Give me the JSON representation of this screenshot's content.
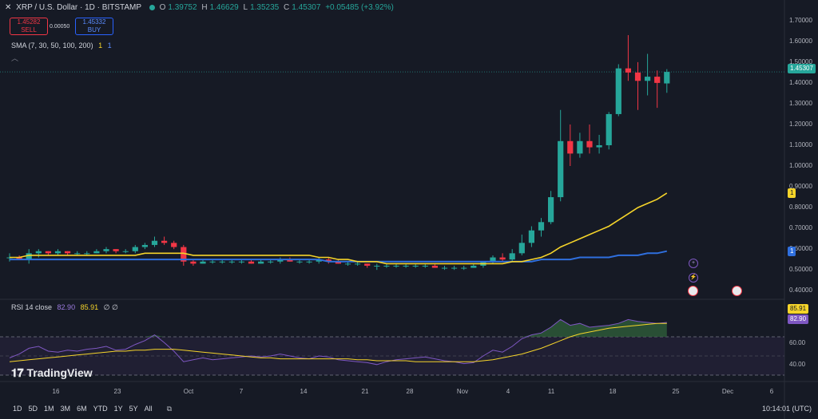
{
  "header": {
    "symbol": "XRP / U.S. Dollar · 1D · BITSTAMP",
    "o_label": "O",
    "o": "1.39752",
    "h_label": "H",
    "h": "1.46629",
    "l_label": "L",
    "l": "1.35235",
    "c_label": "C",
    "c": "1.45307",
    "change": "+0.05485 (+3.92%)"
  },
  "trade": {
    "sell_price": "1.45282",
    "sell_label": "SELL",
    "spread": "0.00050",
    "buy_price": "1.45332",
    "buy_label": "BUY"
  },
  "indicators": {
    "sma": "SMA (7, 30, 50, 100, 200)",
    "sma_v1": "1",
    "sma_v2": "1",
    "rsi": "RSI 14 close",
    "rsi_v1": "82.90",
    "rsi_v2": "85.91",
    "rsi_v3": "∅ ∅"
  },
  "price_tags": {
    "last": "1.45307",
    "sma_yellow": "1",
    "sma_blue": "1",
    "rsi_a": "85.91",
    "rsi_b": "82.90"
  },
  "logo": "TradingView",
  "timeframes": [
    "1D",
    "5D",
    "1M",
    "3M",
    "6M",
    "YTD",
    "1Y",
    "5Y",
    "All"
  ],
  "clock": "10:14:01 (UTC)",
  "colors": {
    "up": "#26a69a",
    "down": "#f23645",
    "sma_yellow": "#f5d42a",
    "sma_blue": "#2f6fde",
    "rsi_line": "#7e57c2"
  },
  "chart_data": {
    "type": "candlestick",
    "y_ticks": [
      "1.70000",
      "1.60000",
      "1.50000",
      "1.40000",
      "1.30000",
      "1.20000",
      "1.10000",
      "1.00000",
      "0.90000",
      "0.80000",
      "0.70000",
      "0.60000",
      "0.50000",
      "0.40000"
    ],
    "ylim": [
      0.37,
      1.73
    ],
    "x_ticks": [
      "16",
      "23",
      "Oct",
      "7",
      "14",
      "21",
      "28",
      "Nov",
      "4",
      "11",
      "18",
      "25",
      "Dec",
      "6"
    ],
    "rsi_ticks": [
      "60.00",
      "40.00"
    ],
    "candles": [
      [
        0.56,
        0.58,
        0.54,
        0.56
      ],
      [
        0.56,
        0.57,
        0.55,
        0.55
      ],
      [
        0.55,
        0.6,
        0.53,
        0.58
      ],
      [
        0.58,
        0.6,
        0.56,
        0.59
      ],
      [
        0.59,
        0.59,
        0.57,
        0.58
      ],
      [
        0.58,
        0.6,
        0.57,
        0.59
      ],
      [
        0.59,
        0.59,
        0.57,
        0.58
      ],
      [
        0.58,
        0.59,
        0.57,
        0.58
      ],
      [
        0.58,
        0.59,
        0.57,
        0.58
      ],
      [
        0.58,
        0.6,
        0.58,
        0.59
      ],
      [
        0.59,
        0.61,
        0.58,
        0.6
      ],
      [
        0.6,
        0.6,
        0.58,
        0.59
      ],
      [
        0.59,
        0.6,
        0.58,
        0.59
      ],
      [
        0.59,
        0.62,
        0.58,
        0.61
      ],
      [
        0.61,
        0.63,
        0.6,
        0.62
      ],
      [
        0.62,
        0.66,
        0.61,
        0.64
      ],
      [
        0.64,
        0.66,
        0.62,
        0.63
      ],
      [
        0.63,
        0.64,
        0.6,
        0.61
      ],
      [
        0.61,
        0.62,
        0.52,
        0.54
      ],
      [
        0.54,
        0.55,
        0.52,
        0.53
      ],
      [
        0.53,
        0.55,
        0.53,
        0.54
      ],
      [
        0.54,
        0.55,
        0.53,
        0.54
      ],
      [
        0.54,
        0.55,
        0.53,
        0.54
      ],
      [
        0.54,
        0.55,
        0.53,
        0.54
      ],
      [
        0.54,
        0.55,
        0.53,
        0.54
      ],
      [
        0.54,
        0.55,
        0.53,
        0.53
      ],
      [
        0.53,
        0.55,
        0.53,
        0.54
      ],
      [
        0.54,
        0.55,
        0.53,
        0.54
      ],
      [
        0.54,
        0.56,
        0.53,
        0.55
      ],
      [
        0.55,
        0.56,
        0.54,
        0.54
      ],
      [
        0.54,
        0.55,
        0.53,
        0.54
      ],
      [
        0.54,
        0.55,
        0.53,
        0.54
      ],
      [
        0.54,
        0.56,
        0.53,
        0.55
      ],
      [
        0.55,
        0.56,
        0.53,
        0.54
      ],
      [
        0.54,
        0.55,
        0.53,
        0.53
      ],
      [
        0.53,
        0.54,
        0.52,
        0.53
      ],
      [
        0.53,
        0.54,
        0.52,
        0.53
      ],
      [
        0.53,
        0.53,
        0.51,
        0.52
      ],
      [
        0.52,
        0.53,
        0.5,
        0.52
      ],
      [
        0.52,
        0.53,
        0.51,
        0.52
      ],
      [
        0.52,
        0.53,
        0.51,
        0.52
      ],
      [
        0.52,
        0.53,
        0.51,
        0.52
      ],
      [
        0.52,
        0.53,
        0.51,
        0.52
      ],
      [
        0.52,
        0.53,
        0.51,
        0.52
      ],
      [
        0.52,
        0.53,
        0.51,
        0.51
      ],
      [
        0.51,
        0.52,
        0.5,
        0.51
      ],
      [
        0.51,
        0.52,
        0.5,
        0.51
      ],
      [
        0.51,
        0.52,
        0.5,
        0.51
      ],
      [
        0.51,
        0.53,
        0.51,
        0.52
      ],
      [
        0.52,
        0.54,
        0.51,
        0.54
      ],
      [
        0.54,
        0.57,
        0.53,
        0.56
      ],
      [
        0.56,
        0.58,
        0.54,
        0.55
      ],
      [
        0.55,
        0.6,
        0.54,
        0.58
      ],
      [
        0.58,
        0.67,
        0.57,
        0.63
      ],
      [
        0.63,
        0.71,
        0.61,
        0.69
      ],
      [
        0.69,
        0.75,
        0.66,
        0.73
      ],
      [
        0.73,
        0.88,
        0.72,
        0.85
      ],
      [
        0.85,
        1.27,
        0.83,
        1.12
      ],
      [
        1.12,
        1.2,
        1.0,
        1.06
      ],
      [
        1.06,
        1.16,
        1.04,
        1.12
      ],
      [
        1.12,
        1.2,
        1.06,
        1.09
      ],
      [
        1.09,
        1.15,
        1.06,
        1.1
      ],
      [
        1.1,
        1.26,
        1.08,
        1.25
      ],
      [
        1.25,
        1.49,
        1.24,
        1.47
      ],
      [
        1.47,
        1.63,
        1.41,
        1.45
      ],
      [
        1.45,
        1.5,
        1.27,
        1.41
      ],
      [
        1.41,
        1.54,
        1.34,
        1.43
      ],
      [
        1.43,
        1.46,
        1.28,
        1.4
      ],
      [
        1.39752,
        1.46629,
        1.35235,
        1.45307
      ]
    ],
    "sma_yellow": [
      0.56,
      0.56,
      0.57,
      0.57,
      0.57,
      0.57,
      0.57,
      0.57,
      0.57,
      0.57,
      0.57,
      0.57,
      0.57,
      0.57,
      0.58,
      0.58,
      0.58,
      0.58,
      0.58,
      0.57,
      0.57,
      0.57,
      0.57,
      0.57,
      0.57,
      0.57,
      0.57,
      0.57,
      0.57,
      0.57,
      0.57,
      0.57,
      0.56,
      0.56,
      0.55,
      0.55,
      0.54,
      0.54,
      0.54,
      0.53,
      0.53,
      0.53,
      0.53,
      0.53,
      0.53,
      0.53,
      0.53,
      0.53,
      0.53,
      0.53,
      0.53,
      0.53,
      0.54,
      0.54,
      0.55,
      0.56,
      0.58,
      0.61,
      0.63,
      0.65,
      0.67,
      0.69,
      0.71,
      0.74,
      0.77,
      0.8,
      0.82,
      0.84,
      0.87
    ],
    "sma_blue": [
      0.55,
      0.55,
      0.55,
      0.55,
      0.55,
      0.55,
      0.55,
      0.55,
      0.55,
      0.55,
      0.55,
      0.55,
      0.55,
      0.55,
      0.55,
      0.55,
      0.55,
      0.55,
      0.55,
      0.55,
      0.55,
      0.55,
      0.55,
      0.55,
      0.55,
      0.55,
      0.55,
      0.55,
      0.55,
      0.55,
      0.55,
      0.55,
      0.55,
      0.54,
      0.54,
      0.54,
      0.54,
      0.54,
      0.54,
      0.54,
      0.54,
      0.54,
      0.54,
      0.54,
      0.54,
      0.54,
      0.54,
      0.54,
      0.54,
      0.54,
      0.54,
      0.54,
      0.54,
      0.54,
      0.54,
      0.55,
      0.55,
      0.55,
      0.55,
      0.56,
      0.56,
      0.56,
      0.56,
      0.57,
      0.57,
      0.57,
      0.58,
      0.58,
      0.59
    ],
    "rsi": [
      48,
      52,
      58,
      60,
      55,
      54,
      56,
      55,
      57,
      58,
      60,
      56,
      57,
      62,
      66,
      72,
      64,
      55,
      44,
      46,
      48,
      46,
      47,
      48,
      49,
      50,
      49,
      50,
      52,
      50,
      48,
      47,
      50,
      49,
      46,
      45,
      44,
      43,
      41,
      44,
      46,
      47,
      48,
      49,
      47,
      45,
      44,
      42,
      43,
      50,
      56,
      54,
      60,
      68,
      72,
      74,
      80,
      88,
      82,
      84,
      80,
      81,
      82,
      84,
      88,
      86,
      85,
      84,
      85
    ],
    "rsi_ma": [
      44,
      45,
      46,
      47,
      48,
      49,
      50,
      51,
      52,
      53,
      54,
      55,
      55,
      56,
      56,
      57,
      57,
      57,
      56,
      55,
      54,
      53,
      52,
      51,
      50,
      49,
      48,
      48,
      47,
      47,
      47,
      47,
      47,
      47,
      47,
      47,
      46,
      46,
      45,
      45,
      45,
      45,
      44,
      44,
      44,
      44,
      44,
      44,
      44,
      45,
      46,
      48,
      50,
      52,
      55,
      58,
      62,
      66,
      70,
      73,
      75,
      77,
      79,
      80,
      81,
      82,
      83,
      84,
      84
    ]
  }
}
